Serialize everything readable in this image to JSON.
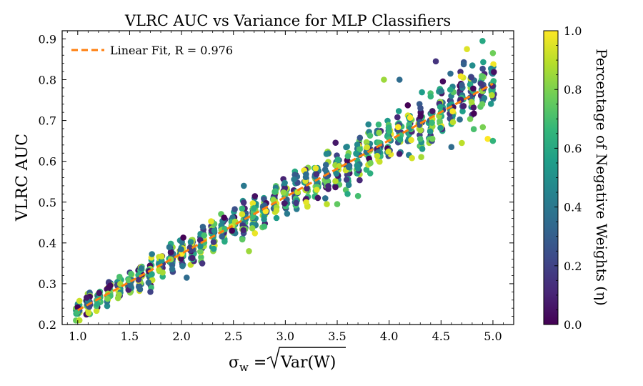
{
  "chart_data": {
    "type": "scatter",
    "title": "VLRC AUC vs Variance for MLP Classifiers",
    "xlabel": {
      "prefix": "σ",
      "subscript": "w",
      "eq": " = ",
      "sqrt_body": "Var(W)"
    },
    "ylabel": "VLRC AUC",
    "xlim": [
      0.85,
      5.2
    ],
    "ylim": [
      0.2,
      0.92
    ],
    "x_ticks": [
      1.0,
      1.5,
      2.0,
      2.5,
      3.0,
      3.5,
      4.0,
      4.5,
      5.0
    ],
    "x_tick_labels": [
      "1.0",
      "1.5",
      "2.0",
      "2.5",
      "3.0",
      "3.5",
      "4.0",
      "4.5",
      "5.0"
    ],
    "y_ticks": [
      0.2,
      0.3,
      0.4,
      0.5,
      0.6,
      0.7,
      0.8,
      0.9
    ],
    "y_tick_labels": [
      "0.2",
      "0.3",
      "0.4",
      "0.5",
      "0.6",
      "0.7",
      "0.8",
      "0.9"
    ],
    "grid": false,
    "legend": {
      "position": "top-left",
      "label": "Linear Fit, R = 0.976"
    },
    "fit_line": {
      "x": [
        1.0,
        5.0
      ],
      "y": [
        0.235,
        0.79
      ],
      "color": "#ff7f0e"
    },
    "colorbar": {
      "label": "Percentage of Negative Weights (η)",
      "range": [
        0.0,
        1.0
      ],
      "ticks": [
        0.0,
        0.2,
        0.4,
        0.6,
        0.8,
        1.0
      ],
      "tick_labels": [
        "0.0",
        "0.2",
        "0.4",
        "0.6",
        "0.8",
        "1.0"
      ],
      "colormap": "viridis",
      "stops": [
        "#440154",
        "#482878",
        "#3e4989",
        "#31688e",
        "#26828e",
        "#1f9e89",
        "#35b779",
        "#6ece58",
        "#b5de2b",
        "#fde725"
      ]
    },
    "scatter": {
      "x_values": [
        1.0,
        1.1,
        1.2,
        1.3,
        1.4,
        1.5,
        1.6,
        1.7,
        1.8,
        1.9,
        2.0,
        2.1,
        2.2,
        2.3,
        2.4,
        2.5,
        2.6,
        2.7,
        2.8,
        2.9,
        3.0,
        3.1,
        3.2,
        3.3,
        3.4,
        3.5,
        3.6,
        3.7,
        3.8,
        3.9,
        4.0,
        4.1,
        4.2,
        4.3,
        4.4,
        4.5,
        4.6,
        4.7,
        4.8,
        4.9,
        5.0
      ],
      "points_per_x": 24,
      "fit_intercept": 0.0963,
      "fit_slope": 0.1388,
      "spread_min": 0.035,
      "spread_slope": 0.018,
      "outliers": [
        {
          "x": 1.7,
          "y": 0.28,
          "c": 0.2
        },
        {
          "x": 2.05,
          "y": 0.315,
          "c": 0.35
        },
        {
          "x": 2.2,
          "y": 0.35,
          "c": 0.15
        },
        {
          "x": 2.65,
          "y": 0.38,
          "c": 0.85
        },
        {
          "x": 2.6,
          "y": 0.54,
          "c": 0.4
        },
        {
          "x": 3.4,
          "y": 0.495,
          "c": 0.9
        },
        {
          "x": 3.5,
          "y": 0.495,
          "c": 0.75
        },
        {
          "x": 3.6,
          "y": 0.52,
          "c": 0.6
        },
        {
          "x": 3.7,
          "y": 0.515,
          "c": 0.7
        },
        {
          "x": 3.95,
          "y": 0.8,
          "c": 0.85
        },
        {
          "x": 4.1,
          "y": 0.8,
          "c": 0.35
        },
        {
          "x": 4.45,
          "y": 0.845,
          "c": 0.15
        },
        {
          "x": 4.9,
          "y": 0.895,
          "c": 0.6
        },
        {
          "x": 4.75,
          "y": 0.875,
          "c": 0.95
        },
        {
          "x": 4.95,
          "y": 0.655,
          "c": 1.0
        },
        {
          "x": 5.0,
          "y": 0.65,
          "c": 0.65
        },
        {
          "x": 4.3,
          "y": 0.655,
          "c": 0.7
        },
        {
          "x": 4.6,
          "y": 0.635,
          "c": 0.35
        },
        {
          "x": 4.7,
          "y": 0.645,
          "c": 0.9
        }
      ]
    }
  }
}
